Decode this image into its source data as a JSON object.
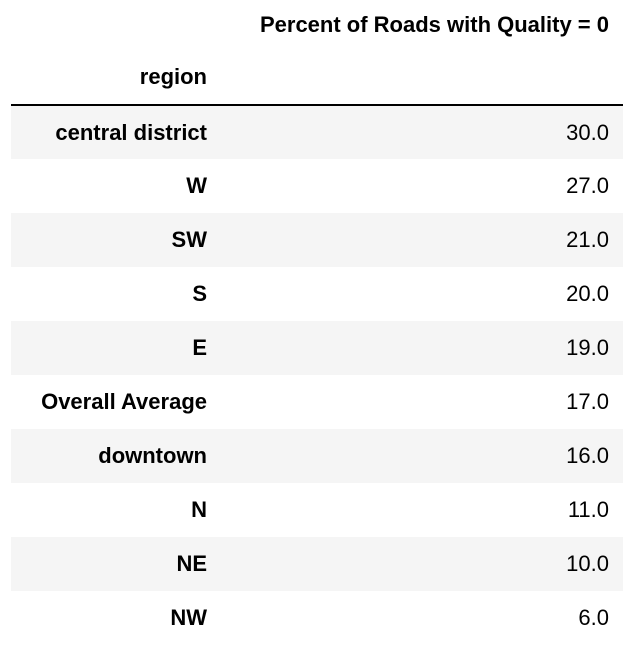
{
  "table": {
    "column_header": "Percent of Roads with Quality = 0",
    "index_name": "region",
    "rows": [
      {
        "label": "central district",
        "value": "30.0"
      },
      {
        "label": "W",
        "value": "27.0"
      },
      {
        "label": "SW",
        "value": "21.0"
      },
      {
        "label": "S",
        "value": "20.0"
      },
      {
        "label": "E",
        "value": "19.0"
      },
      {
        "label": "Overall Average",
        "value": "17.0"
      },
      {
        "label": "downtown",
        "value": "16.0"
      },
      {
        "label": "N",
        "value": "11.0"
      },
      {
        "label": "NE",
        "value": "10.0"
      },
      {
        "label": "NW",
        "value": "6.0"
      }
    ]
  },
  "chart_data": {
    "type": "table",
    "columns": [
      "Percent of Roads with Quality = 0"
    ],
    "index_name": "region",
    "categories": [
      "central district",
      "W",
      "SW",
      "S",
      "E",
      "Overall Average",
      "downtown",
      "N",
      "NE",
      "NW"
    ],
    "values": [
      30.0,
      27.0,
      21.0,
      20.0,
      19.0,
      17.0,
      16.0,
      11.0,
      10.0,
      6.0
    ]
  },
  "colors": {
    "stripe": "#f5f5f5",
    "rule": "#000000",
    "text": "#000000"
  }
}
